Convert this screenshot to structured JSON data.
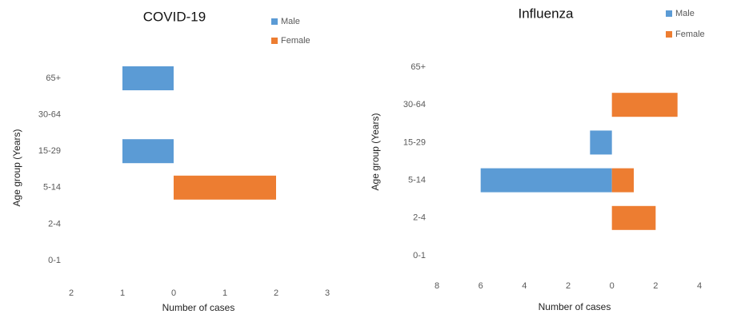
{
  "chart_data": [
    {
      "type": "bar",
      "orientation": "horizontal",
      "title": "COVID-19",
      "x_label": "Number of cases",
      "y_label": "Age group (Years)",
      "categories": [
        "0-1",
        "2-4",
        "5-14",
        "15-29",
        "30-64",
        "65+"
      ],
      "series": [
        {
          "name": "Male",
          "color": "#5b9bd5",
          "values": [
            0,
            0,
            0,
            -1,
            0,
            -1
          ]
        },
        {
          "name": "Female",
          "color": "#ed7d31",
          "values": [
            0,
            0,
            2,
            0,
            0,
            0
          ]
        }
      ],
      "xlim": [
        -2,
        3
      ],
      "xticks": [
        {
          "value": -2,
          "label": "2"
        },
        {
          "value": -1,
          "label": "1"
        },
        0,
        1,
        2,
        3
      ],
      "grid": false,
      "legend": "top-right"
    },
    {
      "type": "bar",
      "orientation": "horizontal",
      "title": "Influenza",
      "x_label": "Number of cases",
      "y_label": "Age group (Years)",
      "categories": [
        "0-1",
        "2-4",
        "5-14",
        "15-29",
        "30-64",
        "65+"
      ],
      "series": [
        {
          "name": "Male",
          "color": "#5b9bd5",
          "values": [
            0,
            0,
            -6,
            -1,
            0,
            0
          ]
        },
        {
          "name": "Female",
          "color": "#ed7d31",
          "values": [
            0,
            2,
            1,
            0,
            3,
            0
          ]
        }
      ],
      "xlim": [
        -8,
        4
      ],
      "xticks": [
        {
          "value": -8,
          "label": "8"
        },
        {
          "value": -6,
          "label": "6"
        },
        {
          "value": -4,
          "label": "4"
        },
        {
          "value": -2,
          "label": "2"
        },
        0,
        2,
        4
      ],
      "grid": false,
      "legend": "top-right"
    }
  ]
}
